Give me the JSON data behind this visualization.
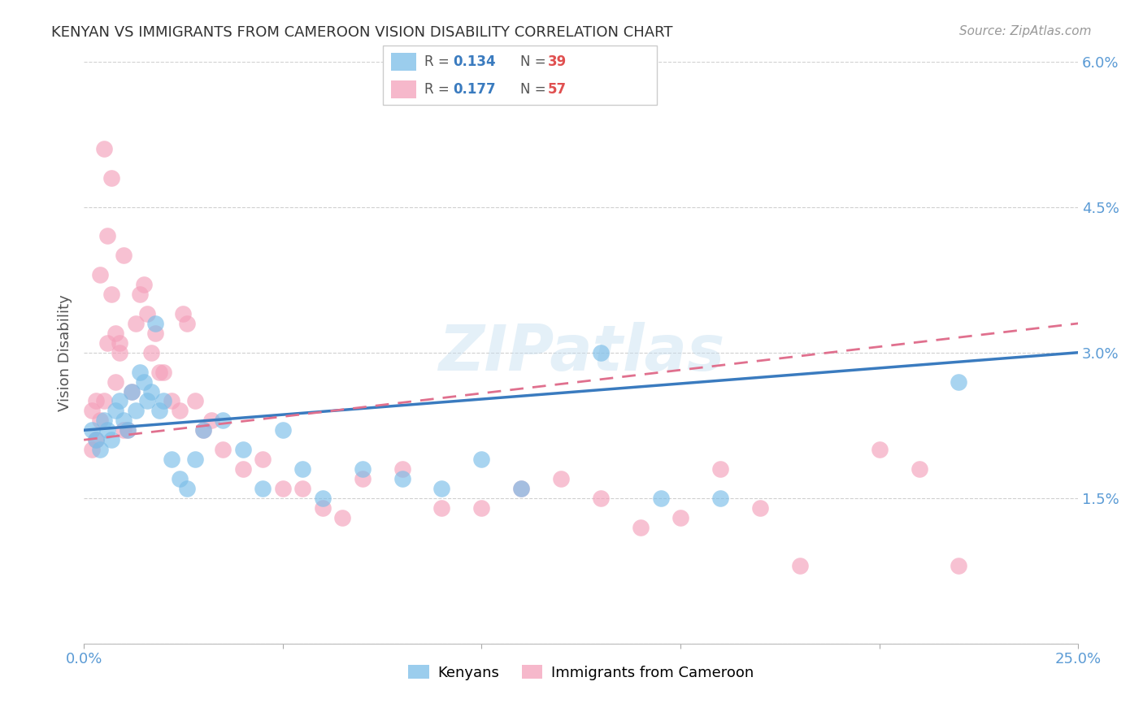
{
  "title": "KENYAN VS IMMIGRANTS FROM CAMEROON VISION DISABILITY CORRELATION CHART",
  "source": "Source: ZipAtlas.com",
  "ylabel": "Vision Disability",
  "xlim": [
    0.0,
    0.25
  ],
  "ylim": [
    0.0,
    0.06
  ],
  "xticks": [
    0.0,
    0.05,
    0.1,
    0.15,
    0.2,
    0.25
  ],
  "yticks": [
    0.0,
    0.015,
    0.03,
    0.045,
    0.06
  ],
  "ytick_labels": [
    "",
    "1.5%",
    "3.0%",
    "4.5%",
    "6.0%"
  ],
  "xtick_labels": [
    "0.0%",
    "",
    "",
    "",
    "",
    "25.0%"
  ],
  "legend_r1": "0.134",
  "legend_n1": "39",
  "legend_r2": "0.177",
  "legend_n2": "57",
  "legend_label1": "Kenyans",
  "legend_label2": "Immigrants from Cameroon",
  "color_blue": "#7abde8",
  "color_pink": "#f4a0ba",
  "color_blue_line": "#3a7bbf",
  "color_pink_line": "#e0708e",
  "color_r_val": "#3a7bbf",
  "color_n_val": "#e05050",
  "color_axis_labels": "#5b9bd5",
  "grid_color": "#d0d0d0",
  "watermark": "ZIPatlas",
  "blue_x": [
    0.002,
    0.003,
    0.004,
    0.005,
    0.006,
    0.007,
    0.008,
    0.009,
    0.01,
    0.011,
    0.012,
    0.013,
    0.014,
    0.015,
    0.016,
    0.017,
    0.018,
    0.019,
    0.02,
    0.022,
    0.024,
    0.026,
    0.028,
    0.03,
    0.035,
    0.04,
    0.045,
    0.05,
    0.055,
    0.06,
    0.07,
    0.08,
    0.09,
    0.1,
    0.11,
    0.13,
    0.145,
    0.16,
    0.22
  ],
  "blue_y": [
    0.022,
    0.021,
    0.02,
    0.023,
    0.022,
    0.021,
    0.024,
    0.025,
    0.023,
    0.022,
    0.026,
    0.024,
    0.028,
    0.027,
    0.025,
    0.026,
    0.033,
    0.024,
    0.025,
    0.019,
    0.017,
    0.016,
    0.019,
    0.022,
    0.023,
    0.02,
    0.016,
    0.022,
    0.018,
    0.015,
    0.018,
    0.017,
    0.016,
    0.019,
    0.016,
    0.03,
    0.015,
    0.015,
    0.027
  ],
  "pink_x": [
    0.002,
    0.003,
    0.004,
    0.005,
    0.006,
    0.007,
    0.008,
    0.009,
    0.01,
    0.011,
    0.012,
    0.013,
    0.014,
    0.015,
    0.016,
    0.017,
    0.018,
    0.019,
    0.02,
    0.022,
    0.024,
    0.025,
    0.026,
    0.028,
    0.03,
    0.032,
    0.035,
    0.04,
    0.045,
    0.05,
    0.055,
    0.06,
    0.065,
    0.07,
    0.08,
    0.09,
    0.1,
    0.11,
    0.12,
    0.13,
    0.14,
    0.15,
    0.16,
    0.17,
    0.18,
    0.2,
    0.21,
    0.22,
    0.002,
    0.003,
    0.004,
    0.005,
    0.006,
    0.007,
    0.008,
    0.009,
    0.01
  ],
  "pink_y": [
    0.024,
    0.025,
    0.038,
    0.051,
    0.042,
    0.048,
    0.032,
    0.031,
    0.04,
    0.022,
    0.026,
    0.033,
    0.036,
    0.037,
    0.034,
    0.03,
    0.032,
    0.028,
    0.028,
    0.025,
    0.024,
    0.034,
    0.033,
    0.025,
    0.022,
    0.023,
    0.02,
    0.018,
    0.019,
    0.016,
    0.016,
    0.014,
    0.013,
    0.017,
    0.018,
    0.014,
    0.014,
    0.016,
    0.017,
    0.015,
    0.012,
    0.013,
    0.018,
    0.014,
    0.008,
    0.02,
    0.018,
    0.008,
    0.02,
    0.021,
    0.023,
    0.025,
    0.031,
    0.036,
    0.027,
    0.03,
    0.022
  ],
  "blue_trend_x": [
    0.0,
    0.25
  ],
  "blue_trend_y": [
    0.022,
    0.03
  ],
  "pink_trend_x": [
    0.0,
    0.25
  ],
  "pink_trend_y": [
    0.021,
    0.033
  ]
}
